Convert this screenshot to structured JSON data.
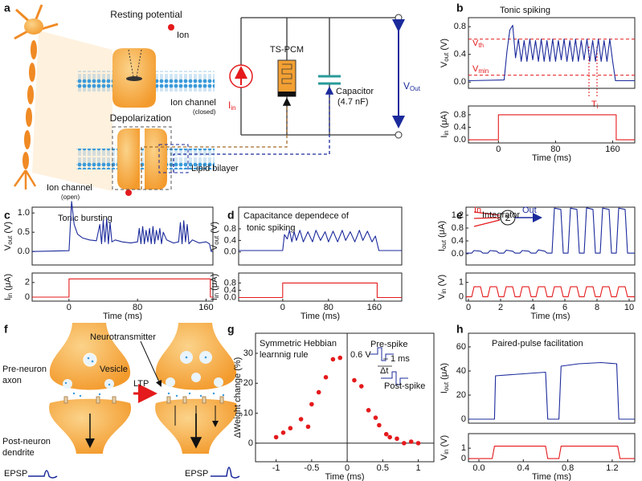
{
  "panel_labels": [
    "a",
    "b",
    "c",
    "d",
    "e",
    "f",
    "g",
    "h"
  ],
  "figure_a": {
    "resting_potential": "Resting potential",
    "ion": "Ion",
    "ion_channel_closed": [
      "Ion channel",
      "(closed)"
    ],
    "depolarization": "Depolarization",
    "lipid_bilayer": "Lipid bilayer",
    "ion_channel_open": [
      "Ion channel",
      "(open)"
    ],
    "ts_pcm": "TS-PCM",
    "current": [
      "I",
      "in"
    ],
    "capacitor": [
      "Capacitor",
      "(4.7 nF)"
    ],
    "vout": [
      "V",
      "Out"
    ]
  },
  "figure_f": {
    "neurotransmitter": "Neurotransmitter",
    "pre_neuron": [
      "Pre-neuron",
      "axon"
    ],
    "vesicle": "Vesicle",
    "ltp": "LTP",
    "post_neuron": [
      "Post-neuron",
      "dendrite"
    ],
    "epsp": [
      "EPSP",
      "EPSP"
    ]
  },
  "chart_data": [
    {
      "type": "line",
      "title": "Tonic spiking",
      "ylabel": [
        "V",
        "out",
        "(V)"
      ],
      "xlim": [
        -42,
        191
      ],
      "ylim": [
        -0.09,
        0.93
      ],
      "yticks": [
        {
          "value": 0,
          "label": "0.0"
        },
        0.4,
        0.8
      ],
      "color": "#1b2a9b",
      "x": [
        -42,
        8,
        12,
        16,
        20,
        24,
        28,
        32,
        36,
        40,
        44,
        48,
        52,
        56,
        60,
        64,
        68,
        72,
        76,
        80,
        84,
        88,
        92,
        96,
        100,
        104,
        108,
        112,
        116,
        120,
        124,
        128,
        132,
        136,
        140,
        144,
        148,
        152,
        156,
        160,
        164,
        191
      ],
      "values": [
        0.02,
        0.03,
        0.45,
        0.75,
        0.82,
        0.35,
        0.62,
        0.3,
        0.6,
        0.3,
        0.62,
        0.32,
        0.6,
        0.3,
        0.62,
        0.3,
        0.6,
        0.3,
        0.62,
        0.3,
        0.6,
        0.32,
        0.62,
        0.3,
        0.6,
        0.3,
        0.62,
        0.3,
        0.6,
        0.32,
        0.62,
        0.3,
        0.6,
        0.3,
        0.62,
        0.3,
        0.6,
        0.3,
        0.62,
        0.3,
        0.02,
        0.02
      ],
      "reference_lines": [
        0.62,
        0.1
      ],
      "reference_color": "#e41a1c",
      "annotations": [
        [
          "V",
          "th"
        ],
        [
          "V",
          "min"
        ],
        [
          "T",
          "i"
        ]
      ]
    },
    {
      "type": "line",
      "ylabel": [
        "I",
        "in",
        "(μA)"
      ],
      "xlabel": "Time (ms)",
      "xlim": [
        -42,
        191
      ],
      "ylim": [
        -0.1,
        1.08
      ],
      "xticks": [
        0,
        80,
        160
      ],
      "yticks": [
        {
          "value": 0,
          "label": "0.0"
        },
        0.4,
        0.8
      ],
      "color": "#e41a1c",
      "x": [
        -42,
        0,
        0,
        165,
        165,
        191
      ],
      "values": [
        0,
        0,
        0.8,
        0.8,
        0,
        0
      ]
    },
    {
      "type": "line",
      "title": "Tonic bursting",
      "ylabel": [
        "V",
        "out",
        "(V)"
      ],
      "xlim": [
        -43,
        168
      ],
      "ylim": [
        -0.35,
        1.15
      ],
      "yticks": [
        {
          "value": 0,
          "label": "0.0"
        },
        0.5,
        {
          "value": 1,
          "label": "1.0"
        }
      ],
      "color": "#1b2a9b",
      "x": [
        -43,
        0,
        3,
        6,
        10,
        16,
        24,
        32,
        36,
        38,
        40,
        42,
        44,
        46,
        48,
        50,
        54,
        62,
        72,
        80,
        82,
        84,
        86,
        88,
        90,
        92,
        94,
        96,
        98,
        100,
        102,
        104,
        106,
        108,
        110,
        114,
        122,
        128,
        130,
        132,
        134,
        136,
        138,
        140,
        144,
        152,
        160,
        164,
        166,
        168
      ],
      "values": [
        0.0,
        0.02,
        1.3,
        0.7,
        0.45,
        0.35,
        0.3,
        0.28,
        0.7,
        0.2,
        0.8,
        0.25,
        0.85,
        0.2,
        0.75,
        0.25,
        0.3,
        0.25,
        0.22,
        0.25,
        0.6,
        0.2,
        0.65,
        0.2,
        0.55,
        0.25,
        0.6,
        0.2,
        0.65,
        0.2,
        0.55,
        0.3,
        0.6,
        0.2,
        0.5,
        0.3,
        0.22,
        0.25,
        0.75,
        0.2,
        0.8,
        0.25,
        0.7,
        0.2,
        0.3,
        0.22,
        0.25,
        0.2,
        0.0,
        0.0
      ]
    },
    {
      "type": "line",
      "ylabel": [
        "I",
        "in",
        "(μA)"
      ],
      "xlabel": "Time (ms)",
      "xlim": [
        -43,
        168
      ],
      "ylim": [
        -0.55,
        3.3
      ],
      "xticks": [
        0,
        80,
        160
      ],
      "yticks": [
        0,
        2
      ],
      "color": "#e41a1c",
      "x": [
        -43,
        0,
        0,
        165,
        165,
        168
      ],
      "values": [
        0,
        0,
        2.5,
        2.5,
        0,
        0
      ]
    },
    {
      "type": "line",
      "title": "Capacitance dependece of",
      "subtitle": "tonic spiking",
      "ylabel": [
        "V",
        "out",
        "(V)"
      ],
      "xlim": [
        -77,
        208
      ],
      "ylim": [
        -0.45,
        1.55
      ],
      "yticks": [
        {
          "value": 0,
          "label": "0.0"
        },
        0.4,
        0.8
      ],
      "color": "#1b2a9b",
      "x": [
        -77,
        0,
        3,
        8,
        12,
        16,
        20,
        24,
        30,
        36,
        44,
        52,
        58,
        66,
        74,
        80,
        88,
        96,
        104,
        110,
        118,
        126,
        134,
        140,
        148,
        156,
        162,
        165,
        168,
        208
      ],
      "values": [
        0.05,
        0.05,
        0.6,
        0.45,
        0.75,
        0.35,
        0.7,
        0.4,
        0.75,
        0.35,
        0.7,
        0.35,
        0.75,
        0.4,
        0.7,
        0.35,
        0.72,
        0.35,
        0.75,
        0.4,
        0.7,
        0.35,
        0.75,
        0.4,
        0.72,
        0.35,
        0.55,
        0.3,
        0.05,
        0.05
      ]
    },
    {
      "type": "line",
      "ylabel": [
        "I",
        "in",
        "(μA)"
      ],
      "xlabel": "Time (ms)",
      "xlim": [
        -77,
        208
      ],
      "ylim": [
        -0.2,
        1.35
      ],
      "xticks": [
        0,
        80,
        160
      ],
      "yticks": [
        {
          "value": 0,
          "label": "0.0"
        },
        0.4,
        0.8
      ],
      "color": "#e41a1c",
      "x": [
        -77,
        0,
        0,
        165,
        165,
        208
      ],
      "values": [
        0,
        0,
        0.8,
        0.8,
        0,
        0
      ]
    },
    {
      "type": "line",
      "title": "Integrator",
      "ylabel": [
        "I",
        "out",
        "(μA)"
      ],
      "xlim": [
        -0.15,
        10.35
      ],
      "ylim": [
        -0.35,
        1.45
      ],
      "yticks": [
        {
          "value": 0,
          "label": "0.0"
        },
        0.4,
        0.8,
        1.2
      ],
      "color": "#1b2a9b",
      "x": [
        -0.15,
        0.2,
        0.35,
        0.75,
        0.9,
        1.2,
        1.35,
        1.75,
        1.9,
        2.2,
        2.35,
        2.75,
        2.9,
        3.2,
        3.35,
        3.75,
        3.9,
        4.2,
        4.35,
        4.75,
        4.9,
        5.2,
        5.35,
        5.75,
        5.9,
        6.2,
        6.35,
        6.75,
        6.9,
        7.2,
        7.35,
        7.75,
        7.9,
        8.2,
        8.35,
        8.75,
        8.9,
        9.2,
        9.35,
        9.75,
        9.9,
        10.35
      ],
      "values": [
        0.02,
        0.02,
        0.1,
        0.08,
        0.02,
        0.02,
        0.1,
        0.08,
        0.02,
        0.02,
        0.11,
        0.08,
        0.02,
        0.02,
        0.1,
        0.08,
        0.02,
        0.02,
        0.12,
        0.08,
        0.02,
        0.02,
        1.42,
        1.38,
        0.02,
        0.02,
        1.42,
        1.38,
        0.02,
        0.02,
        1.43,
        1.38,
        0.02,
        0.02,
        1.42,
        1.38,
        0.02,
        0.02,
        1.42,
        1.38,
        0.02,
        0.02
      ],
      "annotations": [
        "In",
        "Σ",
        "Out"
      ]
    },
    {
      "type": "line",
      "ylabel": [
        "V",
        "in",
        "(V)"
      ],
      "xlabel": "Time (ms)",
      "xlim": [
        -0.15,
        10.35
      ],
      "ylim": [
        -0.3,
        1.65
      ],
      "xticks": [
        0,
        2,
        4,
        6,
        8,
        10
      ],
      "yticks": [
        0,
        1
      ],
      "color": "#e41a1c",
      "x": [
        -0.15,
        0.2,
        0.35,
        0.75,
        0.9,
        1.2,
        1.35,
        1.75,
        1.9,
        2.2,
        2.35,
        2.75,
        2.9,
        3.2,
        3.35,
        3.75,
        3.9,
        4.2,
        4.35,
        4.75,
        4.9,
        5.2,
        5.35,
        5.75,
        5.9,
        6.2,
        6.35,
        6.75,
        6.9,
        7.2,
        7.35,
        7.75,
        7.9,
        8.2,
        8.35,
        8.75,
        8.9,
        9.2,
        9.35,
        9.75,
        9.9,
        10.35
      ],
      "values": [
        0,
        0,
        0.7,
        0.7,
        0,
        0,
        0.7,
        0.7,
        0,
        0,
        0.7,
        0.7,
        0,
        0,
        0.7,
        0.7,
        0,
        0,
        0.7,
        0.7,
        0,
        0,
        0.7,
        0.7,
        0,
        0,
        0.7,
        0.7,
        0,
        0,
        0.7,
        0.7,
        0,
        0,
        0.7,
        0.7,
        0,
        0,
        0.7,
        0.7,
        0,
        0
      ]
    },
    {
      "type": "scatter",
      "title": "Symmetric Hebbian",
      "subtitle": "learnnig rule",
      "ylabel": [
        "ΔWeight change (%)"
      ],
      "xlabel": "Time (ms)",
      "xlim": [
        -1.29,
        1.22
      ],
      "ylim": [
        -6.2,
        36.7
      ],
      "xticks": [
        -1,
        -0.5,
        0,
        0.5,
        1
      ],
      "yticks": [
        0,
        10,
        20,
        30
      ],
      "color": "#e41a1c",
      "x": [
        -1,
        -0.9,
        -0.8,
        -0.65,
        -0.55,
        -0.5,
        -0.4,
        -0.3,
        -0.2,
        -0.1,
        0.1,
        0.2,
        0.3,
        0.4,
        0.45,
        0.55,
        0.6,
        0.7,
        0.8,
        0.9,
        1
      ],
      "values": [
        2,
        3.5,
        5,
        8,
        5.5,
        13,
        17,
        22,
        28,
        28.5,
        21,
        19,
        11,
        8.5,
        6,
        3,
        2,
        1.5,
        0,
        0.5,
        0
      ],
      "annotations": [
        "Pre-spike",
        "0.6 V",
        "1 ms",
        "Δt",
        "Post-spike"
      ]
    },
    {
      "type": "line",
      "title": "Paired-pulse facilitation",
      "ylabel": [
        "I",
        "out",
        "(μA)"
      ],
      "xlim": [
        -0.094,
        1.403
      ],
      "ylim": [
        -3.3,
        71.3
      ],
      "yticks": [
        0,
        20,
        40,
        60
      ],
      "color": "#1b2a9b",
      "x": [
        -0.094,
        0.14,
        0.15,
        0.3,
        0.45,
        0.6,
        0.62,
        0.72,
        0.74,
        0.9,
        1.1,
        1.24,
        1.26,
        1.403
      ],
      "values": [
        0,
        0,
        36,
        37,
        38,
        39,
        0,
        0,
        44,
        46,
        47,
        46,
        0,
        0
      ]
    },
    {
      "type": "line",
      "ylabel": [
        "V",
        "in",
        "(V)"
      ],
      "xlabel": "Time (ms)",
      "xlim": [
        -0.094,
        1.403
      ],
      "ylim": [
        -0.3,
        2.4
      ],
      "xticks": [
        {
          "value": 0,
          "label": "0.0"
        },
        0.4,
        0.8,
        1.2
      ],
      "yticks": [
        0,
        1
      ],
      "color": "#e41a1c",
      "x": [
        -0.094,
        0.12,
        0.14,
        0.6,
        0.62,
        0.72,
        0.74,
        1.25,
        1.27,
        1.403
      ],
      "values": [
        0,
        0,
        1.2,
        1.2,
        0,
        0,
        1.2,
        1.2,
        0,
        0
      ]
    }
  ]
}
